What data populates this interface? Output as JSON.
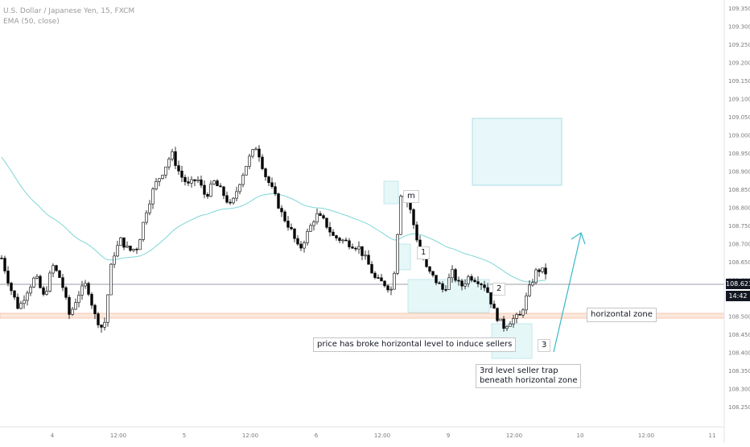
{
  "legend": {
    "symbol": "U.S. Dollar / Japanese Yen, 15, FXCM",
    "indicator": "EMA (50, close)"
  },
  "price_axis": {
    "ticks": [
      "109.350",
      "109.300",
      "109.250",
      "109.200",
      "109.150",
      "109.100",
      "109.050",
      "109.000",
      "108.950",
      "108.900",
      "108.850",
      "108.800",
      "108.750",
      "108.700",
      "108.650",
      "108.600",
      "108.550",
      "108.500",
      "108.450",
      "108.400",
      "108.350",
      "108.300",
      "108.250"
    ],
    "current_price": "108.623",
    "countdown": "14:42"
  },
  "time_axis": {
    "ticks": [
      "4",
      "12:00",
      "5",
      "12:00",
      "6",
      "12:00",
      "9",
      "12:00",
      "10",
      "12:00",
      "11"
    ]
  },
  "annotations": {
    "m": "m",
    "one": "1",
    "two": "2",
    "three": "3",
    "horizontal_zone": "horizontal zone",
    "break_note": "price has broke horizontal level to induce sellers",
    "trap_note_line1": "3rd level seller trap",
    "trap_note_line2": "beneath horizontal zone"
  },
  "colors": {
    "up_candle": "#ffffff",
    "down_candle": "#000000",
    "wick": "#000000",
    "ema": "#7fd6d6",
    "zone_fill": "#e6f7f8",
    "zone_border": "#a9dfe6",
    "horizontal_zone": "#f4c9b0",
    "arrow": "#3ab7c8"
  },
  "chart_data": {
    "type": "candlestick",
    "symbol": "USDJPY",
    "timeframe": "15",
    "ylim": [
      108.25,
      109.35
    ],
    "close_path": [
      108.66,
      108.58,
      108.52,
      108.57,
      108.61,
      108.55,
      108.64,
      108.6,
      108.5,
      108.56,
      108.59,
      108.5,
      108.46,
      108.66,
      108.71,
      108.68,
      108.69,
      108.79,
      108.86,
      108.9,
      108.95,
      108.89,
      108.86,
      108.88,
      108.83,
      108.87,
      108.84,
      108.8,
      108.87,
      108.93,
      108.97,
      108.89,
      108.84,
      108.78,
      108.74,
      108.68,
      108.73,
      108.78,
      108.76,
      108.72,
      108.71,
      108.7,
      108.69,
      108.65,
      108.6,
      108.59,
      108.57,
      108.85,
      108.8,
      108.7,
      108.63,
      108.6,
      108.57,
      108.62,
      108.58,
      108.61,
      108.6,
      108.58,
      108.51,
      108.47,
      108.49,
      108.5,
      108.57,
      108.63,
      108.62
    ]
  }
}
